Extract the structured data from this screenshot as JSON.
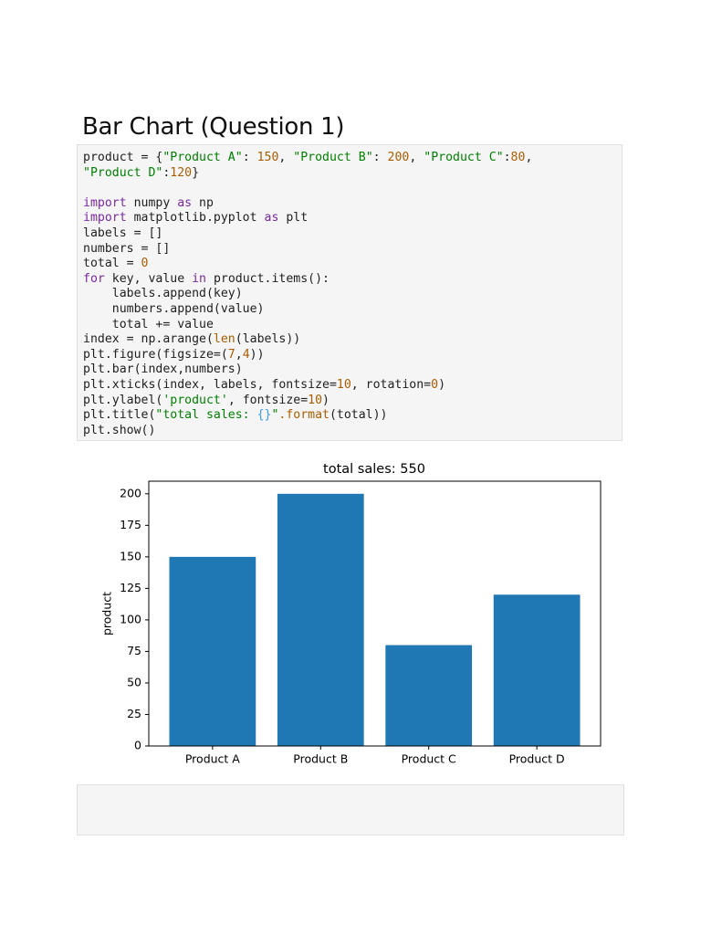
{
  "heading": "Bar Chart (Question 1)",
  "code": {
    "default_color": "#212121",
    "blocks": [
      {
        "lines": [
          [
            "product = {",
            {
              "text": "\"Product A\"",
              "color": "#008000"
            },
            ": ",
            {
              "text": "150",
              "color": "#aa5d00"
            },
            ", ",
            {
              "text": "\"Product B\"",
              "color": "#008000"
            },
            ": ",
            {
              "text": "200",
              "color": "#aa5d00"
            },
            ", ",
            {
              "text": "\"Product C\"",
              "color": "#008000"
            },
            ":",
            {
              "text": "80",
              "color": "#aa5d00"
            },
            ","
          ],
          [
            {
              "text": "\"Product D\"",
              "color": "#008000"
            },
            ":",
            {
              "text": "120",
              "color": "#aa5d00"
            },
            "}"
          ]
        ]
      },
      {
        "lines": [
          [
            {
              "text": "import",
              "color": "#7928a1"
            },
            " numpy ",
            {
              "text": "as",
              "color": "#7928a1"
            },
            " np"
          ],
          [
            {
              "text": "import",
              "color": "#7928a1"
            },
            " matplotlib.pyplot ",
            {
              "text": "as",
              "color": "#7928a1"
            },
            " plt"
          ],
          [
            "labels = []"
          ],
          [
            "numbers = []"
          ],
          [
            "total = ",
            {
              "text": "0",
              "color": "#aa5d00"
            }
          ],
          [
            {
              "text": "for",
              "color": "#7928a1"
            },
            " key, value ",
            {
              "text": "in",
              "color": "#7928a1"
            },
            " product.items():"
          ],
          [
            "    labels.append(key)"
          ],
          [
            "    numbers.append(value)"
          ],
          [
            "    total += value"
          ],
          [
            "index = np.arange(",
            {
              "text": "len",
              "color": "#aa5d00"
            },
            "(labels))"
          ],
          [
            "plt.figure(figsize=(",
            {
              "text": "7",
              "color": "#aa5d00"
            },
            ",",
            {
              "text": "4",
              "color": "#aa5d00"
            },
            "))"
          ],
          [
            "plt.bar(index,numbers)"
          ],
          [
            "plt.xticks(index, labels, fontsize=",
            {
              "text": "10",
              "color": "#aa5d00"
            },
            ", rotation=",
            {
              "text": "0",
              "color": "#aa5d00"
            },
            ")"
          ],
          [
            "plt.ylabel(",
            {
              "text": "'product'",
              "color": "#008000"
            },
            ", fontsize=",
            {
              "text": "10",
              "color": "#aa5d00"
            },
            ")"
          ],
          [
            "plt.title(",
            {
              "text": "\"total sales: ",
              "color": "#008000"
            },
            {
              "text": "{}",
              "color": "#3d9be9"
            },
            {
              "text": "\"",
              "color": "#008000"
            },
            {
              "text": ".format",
              "color": "#aa5d00"
            },
            "(total))"
          ],
          [
            "plt.show()"
          ]
        ]
      }
    ]
  },
  "chart_data": {
    "type": "bar",
    "title": "total sales: 550",
    "y_label": "product",
    "categories": [
      "Product A",
      "Product B",
      "Product C",
      "Product D"
    ],
    "values": [
      150,
      200,
      80,
      120
    ],
    "color": "#1f77b4",
    "ylim": [
      0,
      210
    ],
    "yticks": [
      0,
      25,
      50,
      75,
      100,
      125,
      150,
      175,
      200
    ],
    "grid": false
  }
}
